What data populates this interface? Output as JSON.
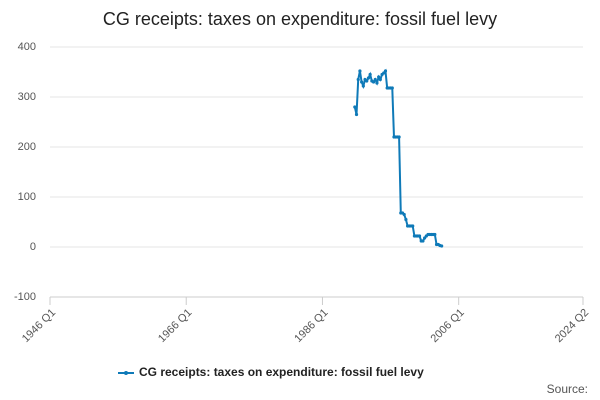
{
  "chart_data": {
    "type": "line",
    "title": "CG receipts: taxes on expenditure: fossil fuel levy",
    "source": "Source:",
    "x": [
      1990.75,
      1991,
      1991.25,
      1991.5,
      1991.75,
      1992,
      1992.25,
      1992.5,
      1992.75,
      1993,
      1993.25,
      1993.5,
      1993.75,
      1994,
      1994.25,
      1994.5,
      1994.75,
      1995,
      1995.25,
      1995.5,
      1995.75,
      1996,
      1996.25,
      1996.5,
      1996.75,
      1997,
      1997.25,
      1997.5,
      1997.75,
      1998,
      1998.25,
      1998.5,
      1998.75,
      1999,
      1999.25,
      1999.5,
      1999.75,
      2000,
      2000.25,
      2000.5,
      2000.75,
      2001,
      2001.25,
      2001.5,
      2001.75,
      2002,
      2002.25,
      2002.5,
      2002.75,
      2003,
      2003.25,
      2003.5
    ],
    "series": [
      {
        "name": "CG receipts: taxes on expenditure: fossil fuel levy",
        "color": "#0f7ab8",
        "values": [
          280,
          265,
          335,
          352,
          330,
          322,
          335,
          332,
          338,
          345,
          332,
          330,
          335,
          328,
          340,
          335,
          345,
          348,
          352,
          318,
          318,
          318,
          318,
          220,
          220,
          220,
          220,
          68,
          68,
          65,
          55,
          42,
          42,
          42,
          42,
          22,
          22,
          22,
          22,
          12,
          12,
          18,
          22,
          25,
          25,
          25,
          25,
          25,
          5,
          5,
          3,
          2
        ]
      }
    ],
    "xlim": [
      1946,
      2024.25
    ],
    "xticks": [
      {
        "value": 1946,
        "label": "1946 Q1"
      },
      {
        "value": 1966,
        "label": "1966 Q1"
      },
      {
        "value": 1986,
        "label": "1986 Q1"
      },
      {
        "value": 2006,
        "label": "2006 Q1"
      },
      {
        "value": 2024.25,
        "label": "2024 Q2"
      }
    ],
    "ylim": [
      -100,
      400
    ],
    "yticks": [
      -100,
      0,
      100,
      200,
      300,
      400
    ],
    "grid": true,
    "legend": "bottom"
  }
}
